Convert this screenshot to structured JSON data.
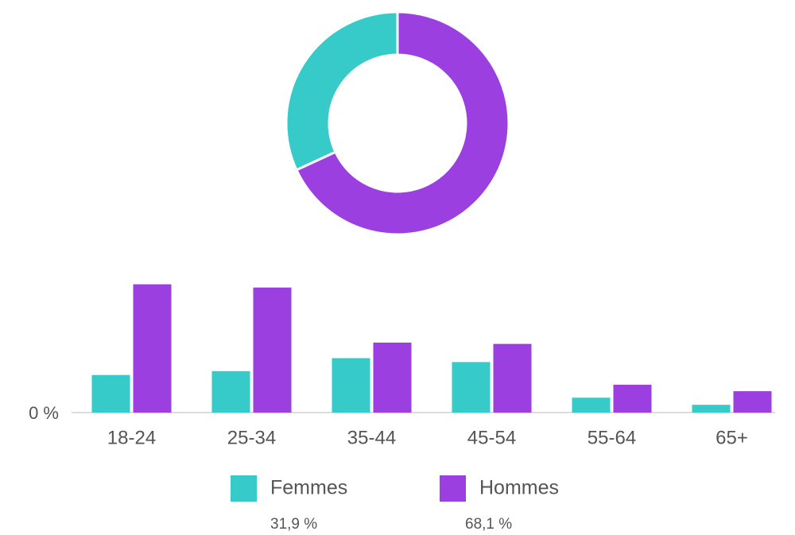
{
  "chart_data": [
    {
      "type": "pie",
      "donut": true,
      "values": [
        31.9,
        68.1
      ],
      "value_labels": [
        "31,9 %",
        "68,1 %"
      ],
      "colors": [
        "#36cbc8",
        "#9b3fe0"
      ]
    },
    {
      "type": "bar",
      "categories": [
        "18-24",
        "25-34",
        "35-44",
        "45-54",
        "55-64",
        "65+"
      ],
      "series": [
        {
          "name": "Femmes",
          "color": "#36cbc8",
          "values": [
            5.8,
            6.4,
            8.4,
            7.8,
            2.3,
            1.2
          ]
        },
        {
          "name": "Hommes",
          "color": "#9b3fe0",
          "values": [
            19.8,
            19.3,
            10.8,
            10.6,
            4.3,
            3.3
          ]
        }
      ],
      "ylim": [
        0,
        20
      ],
      "yticks": [
        {
          "value": 0,
          "label": "0 %"
        }
      ],
      "grid": false
    }
  ]
}
